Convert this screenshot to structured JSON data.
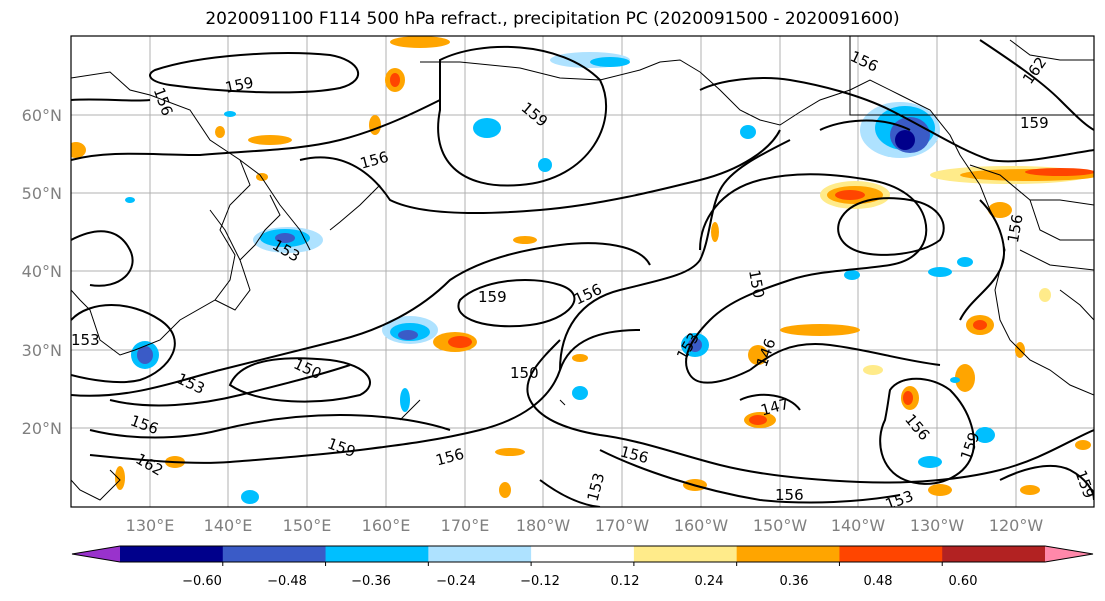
{
  "title": "2020091100 F114 500 hPa refract., precipitation PC (2020091500 - 2020091600)",
  "latitude_labels": [
    "60°N",
    "50°N",
    "40°N",
    "30°N",
    "20°N"
  ],
  "longitude_labels": [
    "130°E",
    "140°E",
    "150°E",
    "160°E",
    "170°E",
    "180°W",
    "170°W",
    "160°W",
    "150°W",
    "140°W",
    "130°W",
    "120°W"
  ],
  "contour_labels": [
    "159",
    "156",
    "156",
    "159",
    "162",
    "159",
    "156",
    "153",
    "156",
    "159",
    "156",
    "150",
    "153",
    "150",
    "153",
    "150",
    "153",
    "146",
    "147",
    "156",
    "159",
    "156",
    "156",
    "153",
    "156",
    "159",
    "156",
    "162",
    "153",
    "159"
  ],
  "colorbar": {
    "tick_labels": [
      "−0.60",
      "−0.48",
      "−0.36",
      "−0.24",
      "−0.12",
      "0.12",
      "0.24",
      "0.36",
      "0.48",
      "0.60"
    ],
    "colors": [
      "#9932CC",
      "#00008B",
      "#3A5BC7",
      "#00BFFF",
      "#AEE2FF",
      "#FFFFFF",
      "#FFEB8A",
      "#FFA500",
      "#FF4500",
      "#B22222",
      "#FF88AA"
    ]
  }
}
